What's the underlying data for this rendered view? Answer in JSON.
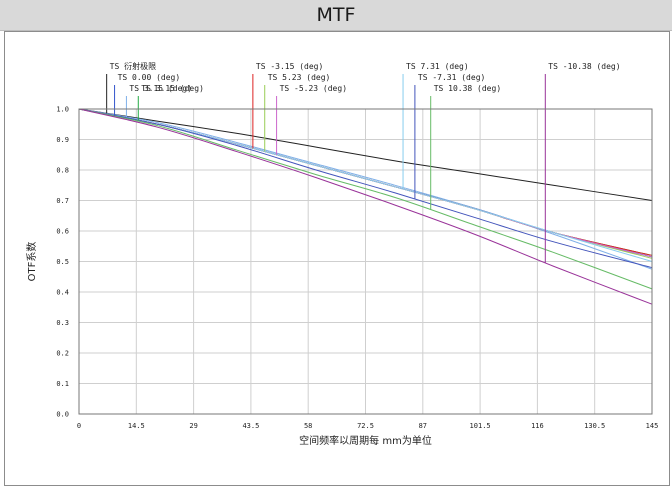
{
  "window": {
    "title": "MTF"
  },
  "chart_data": {
    "type": "line",
    "xlabel": "空间频率以周期每 mm为单位",
    "ylabel": "OTF系数",
    "xlim": [
      0,
      145
    ],
    "ylim": [
      0,
      1
    ],
    "xticks": [
      "0",
      "14.5",
      "29",
      "43.5",
      "58",
      "72.5",
      "87",
      "101.5",
      "116",
      "130.5",
      "145"
    ],
    "yticks": [
      "0.0",
      "0.1",
      "0.2",
      "0.3",
      "0.4",
      "0.5",
      "0.6",
      "0.7",
      "0.8",
      "0.9",
      "1.0"
    ],
    "grid": true,
    "series": [
      {
        "name": "TS 衍射极限",
        "color": "#222222",
        "marker_x": 7,
        "x": [
          0,
          20,
          40,
          60,
          80,
          100,
          120,
          145
        ],
        "y": [
          1.0,
          0.96,
          0.92,
          0.875,
          0.83,
          0.79,
          0.75,
          0.7
        ]
      },
      {
        "name": "TS 0.00 (deg)",
        "color": "#3355cc",
        "marker_x": 9,
        "x": [
          0,
          20,
          40,
          60,
          80,
          100,
          120,
          145
        ],
        "y": [
          1.0,
          0.95,
          0.885,
          0.815,
          0.745,
          0.675,
          0.595,
          0.515
        ]
      },
      {
        "name": "TS 3.15 (deg)",
        "color": "#7fb0e8",
        "marker_x": 12,
        "x": [
          0,
          20,
          40,
          60,
          80,
          100,
          120,
          145
        ],
        "y": [
          1.0,
          0.955,
          0.89,
          0.82,
          0.75,
          0.675,
          0.59,
          0.475
        ]
      },
      {
        "name": "TS 3.15 (deg)",
        "color": "#22aa44",
        "marker_x": 15,
        "x": [
          0,
          20,
          40,
          60,
          80,
          100,
          120,
          145
        ],
        "y": [
          1.0,
          0.95,
          0.885,
          0.815,
          0.745,
          0.673,
          0.595,
          0.52
        ]
      },
      {
        "name": "TS -3.15 (deg)",
        "color": "#dd2222",
        "marker_x": 44,
        "x": [
          0,
          20,
          40,
          60,
          80,
          100,
          120,
          145
        ],
        "y": [
          1.0,
          0.95,
          0.885,
          0.815,
          0.745,
          0.673,
          0.595,
          0.52
        ]
      },
      {
        "name": "TS 5.23 (deg)",
        "color": "#99cc55",
        "marker_x": 47,
        "x": [
          0,
          20,
          40,
          60,
          80,
          100,
          120,
          145
        ],
        "y": [
          1.0,
          0.95,
          0.885,
          0.815,
          0.745,
          0.673,
          0.595,
          0.51
        ]
      },
      {
        "name": "TS -5.23 (deg)",
        "color": "#cc66cc",
        "marker_x": 50,
        "x": [
          0,
          20,
          40,
          60,
          80,
          100,
          120,
          145
        ],
        "y": [
          1.0,
          0.95,
          0.885,
          0.815,
          0.745,
          0.673,
          0.595,
          0.515
        ]
      },
      {
        "name": "TS 7.31 (deg)",
        "color": "#88ccee",
        "marker_x": 82,
        "x": [
          0,
          20,
          40,
          60,
          80,
          100,
          120,
          145
        ],
        "y": [
          1.0,
          0.95,
          0.885,
          0.815,
          0.745,
          0.673,
          0.595,
          0.5
        ]
      },
      {
        "name": "TS -7.31 (deg)",
        "color": "#4455bb",
        "marker_x": 85,
        "x": [
          0,
          20,
          40,
          60,
          80,
          100,
          120,
          145
        ],
        "y": [
          1.0,
          0.95,
          0.88,
          0.8,
          0.725,
          0.645,
          0.565,
          0.48
        ]
      },
      {
        "name": "TS 10.38 (deg)",
        "color": "#66bb66",
        "marker_x": 89,
        "x": [
          0,
          20,
          40,
          60,
          80,
          100,
          120,
          145
        ],
        "y": [
          1.0,
          0.945,
          0.865,
          0.785,
          0.71,
          0.62,
          0.53,
          0.41
        ]
      },
      {
        "name": "TS -10.38 (deg)",
        "color": "#993399",
        "marker_x": 118,
        "x": [
          0,
          20,
          40,
          60,
          80,
          100,
          120,
          145
        ],
        "y": [
          1.0,
          0.94,
          0.86,
          0.775,
          0.685,
          0.59,
          0.485,
          0.36
        ]
      }
    ]
  }
}
